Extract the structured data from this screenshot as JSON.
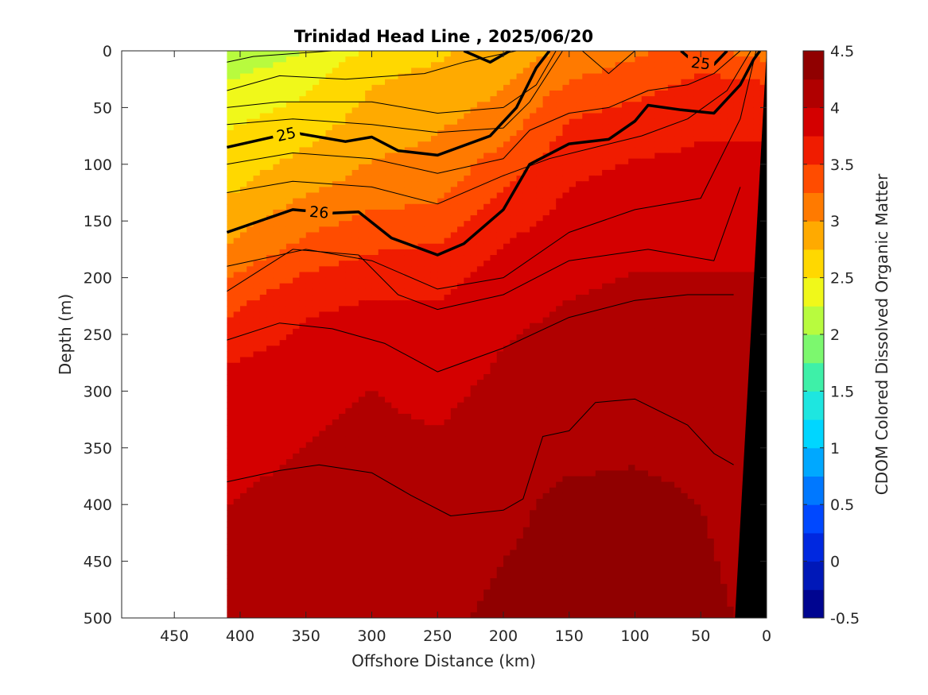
{
  "chart_data": {
    "type": "heatmap",
    "title": "Trinidad Head Line , 2025/06/20",
    "xlabel": "Offshore Distance (km)",
    "ylabel": "Depth (m)",
    "xlim": [
      490,
      0
    ],
    "ylim": [
      500,
      0
    ],
    "x_reversed": true,
    "y_reversed": true,
    "x_ticks": [
      450,
      400,
      350,
      300,
      250,
      200,
      150,
      100,
      50,
      0
    ],
    "y_ticks": [
      0,
      50,
      100,
      150,
      200,
      250,
      300,
      350,
      400,
      450,
      500
    ],
    "data_extent_x": [
      410,
      0
    ],
    "colorbar": {
      "label": "CDOM Colored Dissolved Organic Matter",
      "min": -0.5,
      "max": 4.5,
      "ticks": [
        -0.5,
        0,
        0.5,
        1,
        1.5,
        2,
        2.5,
        3,
        3.5,
        4,
        4.5
      ],
      "colors": [
        "#000590",
        "#0018b8",
        "#0028e0",
        "#0048ff",
        "#0078ff",
        "#00a8ff",
        "#00d6ff",
        "#1ee6e0",
        "#3ef0a8",
        "#7cf86e",
        "#b8fb3e",
        "#f0f81a",
        "#ffd800",
        "#ffaa00",
        "#ff7a00",
        "#ff4c00",
        "#f01c00",
        "#d40000",
        "#b00000",
        "#900000"
      ]
    },
    "field_profiles": [
      {
        "x": 410,
        "depth": [
          0,
          20,
          60,
          120,
          170,
          220,
          300,
          400,
          500
        ],
        "cdom": [
          2.0,
          2.2,
          2.45,
          2.7,
          3.0,
          3.4,
          3.9,
          4.0,
          4.05
        ]
      },
      {
        "x": 350,
        "depth": [
          0,
          20,
          60,
          120,
          170,
          220,
          300,
          400,
          500
        ],
        "cdom": [
          2.25,
          2.4,
          2.6,
          2.95,
          3.3,
          3.7,
          3.95,
          4.05,
          4.1
        ]
      },
      {
        "x": 300,
        "depth": [
          0,
          20,
          60,
          120,
          170,
          220,
          300,
          400,
          500
        ],
        "cdom": [
          2.55,
          2.7,
          2.85,
          3.1,
          3.45,
          3.75,
          4.0,
          4.1,
          4.15
        ]
      },
      {
        "x": 250,
        "depth": [
          0,
          20,
          60,
          120,
          170,
          220,
          300,
          400,
          500
        ],
        "cdom": [
          2.7,
          2.8,
          2.95,
          3.15,
          3.5,
          3.75,
          3.95,
          4.1,
          4.2
        ]
      },
      {
        "x": 200,
        "depth": [
          0,
          20,
          60,
          120,
          170,
          220,
          300,
          400,
          500
        ],
        "cdom": [
          2.85,
          2.95,
          3.1,
          3.5,
          3.75,
          3.95,
          4.05,
          4.2,
          4.3
        ]
      },
      {
        "x": 150,
        "depth": [
          0,
          20,
          60,
          120,
          170,
          220,
          300,
          400,
          500
        ],
        "cdom": [
          3.05,
          3.2,
          3.5,
          3.75,
          3.9,
          4.0,
          4.1,
          4.3,
          4.35
        ]
      },
      {
        "x": 100,
        "depth": [
          0,
          20,
          60,
          120,
          170,
          220,
          300,
          400,
          500
        ],
        "cdom": [
          3.2,
          3.35,
          3.6,
          3.85,
          3.95,
          4.05,
          4.15,
          4.3,
          4.35
        ]
      },
      {
        "x": 50,
        "depth": [
          0,
          20,
          60,
          120,
          170,
          220,
          300,
          400,
          500
        ],
        "cdom": [
          3.35,
          3.5,
          3.7,
          3.85,
          3.95,
          4.05,
          4.15,
          4.25,
          4.3
        ]
      },
      {
        "x": 0,
        "depth": [
          0,
          20,
          60,
          120,
          170,
          220,
          300,
          400,
          500
        ],
        "cdom": [
          3.1,
          3.45,
          3.7,
          3.85,
          3.95,
          4.05,
          4.1,
          4.15,
          4.2
        ]
      }
    ],
    "bathymetry": [
      [
        0,
        0
      ],
      [
        24,
        500
      ]
    ],
    "density_contours": [
      {
        "label": "",
        "bold": false,
        "points": [
          [
            410,
            10
          ],
          [
            390,
            5
          ],
          [
            330,
            0
          ]
        ]
      },
      {
        "label": "",
        "bold": false,
        "points": [
          [
            410,
            35
          ],
          [
            370,
            22
          ],
          [
            320,
            25
          ],
          [
            260,
            20
          ],
          [
            230,
            10
          ],
          [
            210,
            5
          ],
          [
            190,
            0
          ]
        ]
      },
      {
        "label": "",
        "bold": false,
        "points": [
          [
            410,
            50
          ],
          [
            370,
            45
          ],
          [
            300,
            45
          ],
          [
            250,
            55
          ],
          [
            200,
            50
          ],
          [
            175,
            30
          ],
          [
            160,
            0
          ]
        ]
      },
      {
        "label": "",
        "bold": false,
        "points": [
          [
            410,
            65
          ],
          [
            360,
            60
          ],
          [
            300,
            65
          ],
          [
            250,
            72
          ],
          [
            200,
            68
          ],
          [
            180,
            45
          ],
          [
            155,
            0
          ]
        ]
      },
      {
        "label": "25",
        "bold": true,
        "labelX": 365,
        "points": [
          [
            410,
            85
          ],
          [
            360,
            72
          ],
          [
            320,
            80
          ],
          [
            300,
            76
          ],
          [
            280,
            88
          ],
          [
            250,
            92
          ],
          [
            210,
            75
          ],
          [
            190,
            50
          ],
          [
            175,
            15
          ],
          [
            165,
            0
          ]
        ]
      },
      {
        "label": "",
        "bold": false,
        "points": [
          [
            410,
            100
          ],
          [
            360,
            90
          ],
          [
            300,
            95
          ],
          [
            250,
            108
          ],
          [
            200,
            95
          ],
          [
            180,
            70
          ],
          [
            150,
            55
          ],
          [
            120,
            50
          ],
          [
            90,
            35
          ],
          [
            60,
            30
          ],
          [
            40,
            20
          ],
          [
            20,
            0
          ]
        ]
      },
      {
        "label": "",
        "bold": false,
        "points": [
          [
            410,
            125
          ],
          [
            360,
            115
          ],
          [
            300,
            120
          ],
          [
            250,
            135
          ],
          [
            200,
            110
          ],
          [
            165,
            95
          ],
          [
            130,
            85
          ],
          [
            95,
            75
          ],
          [
            60,
            60
          ],
          [
            30,
            35
          ],
          [
            12,
            0
          ]
        ]
      },
      {
        "label": "26",
        "bold": true,
        "labelX": 340,
        "points": [
          [
            410,
            160
          ],
          [
            360,
            140
          ],
          [
            330,
            143
          ],
          [
            310,
            142
          ],
          [
            285,
            165
          ],
          [
            250,
            180
          ],
          [
            230,
            170
          ],
          [
            200,
            140
          ],
          [
            180,
            100
          ],
          [
            150,
            82
          ],
          [
            120,
            78
          ],
          [
            100,
            62
          ],
          [
            90,
            48
          ],
          [
            65,
            52
          ],
          [
            40,
            55
          ],
          [
            20,
            30
          ],
          [
            10,
            8
          ],
          [
            5,
            0
          ]
        ]
      },
      {
        "label": "",
        "bold": false,
        "points": [
          [
            410,
            190
          ],
          [
            350,
            175
          ],
          [
            300,
            185
          ],
          [
            250,
            210
          ],
          [
            200,
            200
          ],
          [
            150,
            160
          ],
          [
            100,
            140
          ],
          [
            50,
            130
          ],
          [
            20,
            60
          ],
          [
            8,
            0
          ]
        ]
      },
      {
        "label": "",
        "bold": false,
        "points": [
          [
            410,
            212
          ],
          [
            360,
            175
          ],
          [
            310,
            180
          ],
          [
            280,
            215
          ],
          [
            250,
            228
          ],
          [
            200,
            215
          ],
          [
            150,
            185
          ],
          [
            90,
            175
          ],
          [
            40,
            185
          ],
          [
            20,
            120
          ]
        ]
      },
      {
        "label": "",
        "bold": false,
        "points": [
          [
            410,
            255
          ],
          [
            370,
            240
          ],
          [
            330,
            245
          ],
          [
            290,
            258
          ],
          [
            250,
            283
          ],
          [
            200,
            262
          ],
          [
            150,
            235
          ],
          [
            100,
            220
          ],
          [
            60,
            215
          ],
          [
            25,
            215
          ]
        ]
      },
      {
        "label": "",
        "bold": false,
        "points": [
          [
            410,
            380
          ],
          [
            370,
            370
          ],
          [
            340,
            365
          ],
          [
            300,
            372
          ],
          [
            270,
            392
          ],
          [
            240,
            410
          ],
          [
            200,
            405
          ],
          [
            185,
            395
          ],
          [
            170,
            340
          ],
          [
            150,
            335
          ],
          [
            130,
            310
          ],
          [
            100,
            307
          ],
          [
            60,
            330
          ],
          [
            40,
            355
          ],
          [
            25,
            365
          ]
        ]
      }
    ],
    "shallow_contours": [
      {
        "label": "",
        "bold": true,
        "points": [
          [
            230,
            0
          ],
          [
            210,
            10
          ],
          [
            195,
            0
          ]
        ]
      },
      {
        "label": "25",
        "bold": true,
        "labelX": 50,
        "points": [
          [
            65,
            0
          ],
          [
            55,
            10
          ],
          [
            40,
            12
          ],
          [
            30,
            0
          ]
        ]
      },
      {
        "label": "",
        "bold": false,
        "points": [
          [
            140,
            0
          ],
          [
            120,
            20
          ],
          [
            100,
            0
          ]
        ]
      }
    ],
    "grid": false
  }
}
